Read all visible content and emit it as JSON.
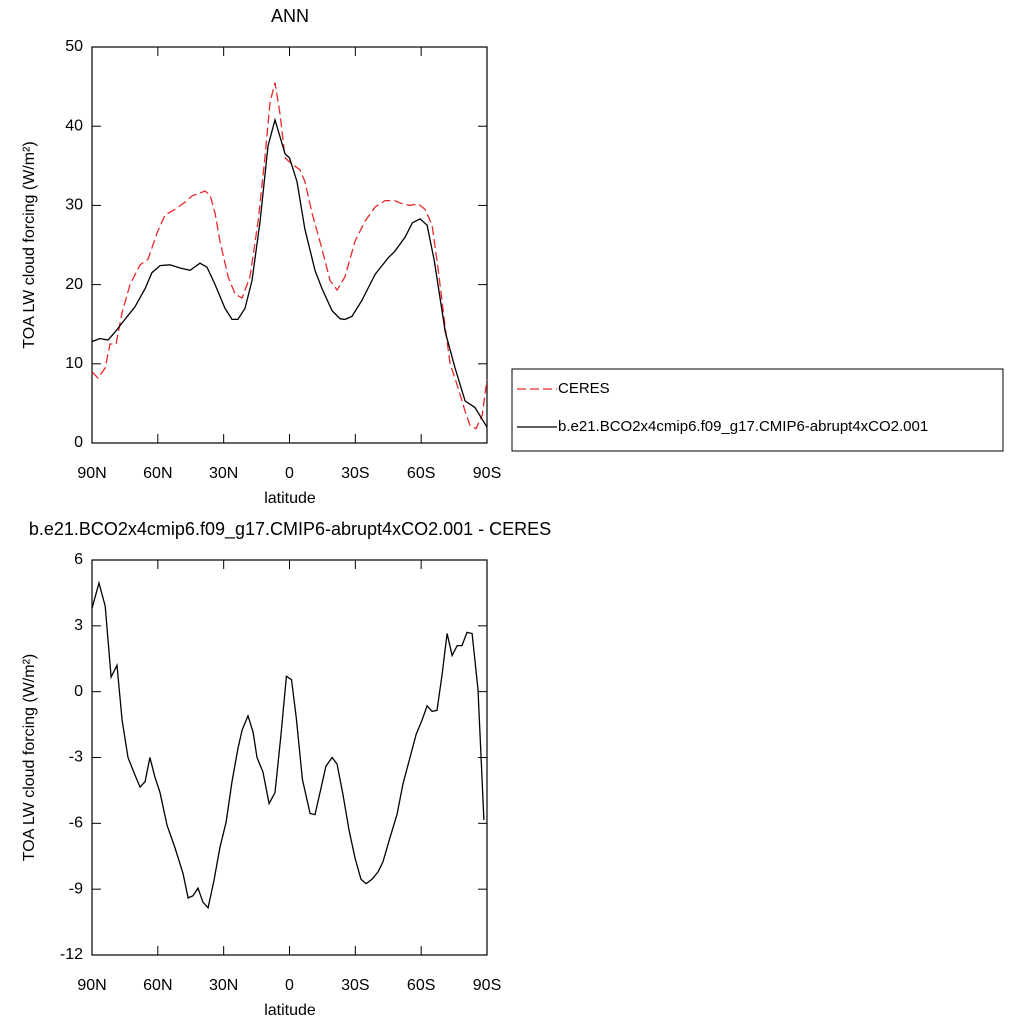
{
  "chart_data": [
    {
      "type": "line",
      "title": "ANN",
      "xlabel": "latitude",
      "ylabel": "TOA LW cloud forcing (W/m²)",
      "xlim": [
        90,
        -90
      ],
      "ylim": [
        0,
        50
      ],
      "xticks": [
        {
          "value": 90,
          "label": "90N"
        },
        {
          "value": 60,
          "label": "60N"
        },
        {
          "value": 30,
          "label": "30N"
        },
        {
          "value": 0,
          "label": "0"
        },
        {
          "value": -30,
          "label": "30S"
        },
        {
          "value": -60,
          "label": "60S"
        },
        {
          "value": -90,
          "label": "90S"
        }
      ],
      "yticks": [
        0,
        10,
        20,
        30,
        40,
        50
      ],
      "legend": "right",
      "series": [
        {
          "name": "CERES",
          "color": "#e8292b",
          "dash": true,
          "x": [
            90,
            87.3,
            84,
            81.8,
            79,
            76.3,
            72.7,
            68.1,
            64.5,
            60.4,
            56.7,
            52.2,
            47.6,
            44.4,
            38.5,
            36.2,
            33.9,
            31.7,
            28,
            24.8,
            21.6,
            18,
            14.3,
            11.2,
            8.9,
            6.6,
            4.3,
            2,
            -1.2,
            -4.8,
            -7,
            -10.3,
            -14.8,
            -18.5,
            -21.7,
            -25.3,
            -29.9,
            -34.4,
            -39,
            -43.5,
            -48,
            -51.3,
            -54.9,
            -58.6,
            -61.8,
            -65,
            -67.7,
            -71,
            -73.2,
            -76.8,
            -80,
            -82.3,
            -85,
            -87.8,
            -90
          ],
          "values": [
            9,
            8.2,
            9.5,
            12.5,
            12.5,
            16.5,
            20,
            22.5,
            23.2,
            26.5,
            28.8,
            29.5,
            30.4,
            31.2,
            31.8,
            31.3,
            29,
            25.5,
            21,
            18.8,
            18.3,
            21,
            28,
            36,
            43,
            45.5,
            41.5,
            36,
            35.2,
            34.5,
            33,
            29,
            24.5,
            20.5,
            19.3,
            21,
            25.5,
            28,
            29.8,
            30.6,
            30.6,
            30.2,
            30,
            30.2,
            29.5,
            27.5,
            22,
            14.5,
            10,
            7,
            4,
            2.2,
            1.8,
            3.5,
            8
          ]
        },
        {
          "name": "b.e21.BCO2x4cmip6.f09_g17.CMIP6-abrupt4xCO2.001",
          "color": "#000000",
          "dash": false,
          "x": [
            90,
            86.4,
            82.7,
            79.5,
            75,
            70.4,
            65.8,
            62.7,
            59,
            54.5,
            49.9,
            45.3,
            40.8,
            37.6,
            33.9,
            29.4,
            26.2,
            23.5,
            20.3,
            17.1,
            13.4,
            9.8,
            6.6,
            2,
            0,
            -3.4,
            -7,
            -11.6,
            -14.8,
            -19.4,
            -23,
            -25.3,
            -28.5,
            -33,
            -39,
            -45,
            -48,
            -52.7,
            -56,
            -59.5,
            -62.7,
            -66,
            -71,
            -75.4,
            -80,
            -84.5,
            -90
          ],
          "values": [
            12.8,
            13.2,
            13,
            14,
            15.6,
            17.2,
            19.5,
            21.5,
            22.4,
            22.5,
            22.1,
            21.8,
            22.7,
            22.2,
            20,
            17,
            15.6,
            15.6,
            17,
            20.5,
            28,
            37.5,
            40.8,
            36.5,
            36,
            33,
            27,
            21.8,
            19.5,
            16.7,
            15.7,
            15.6,
            16,
            18,
            21.3,
            23.4,
            24.2,
            26,
            27.8,
            28.3,
            27.5,
            23,
            14,
            9.5,
            5.3,
            4.5,
            2
          ]
        }
      ]
    },
    {
      "type": "line",
      "title": "b.e21.BCO2x4cmip6.f09_g17.CMIP6-abrupt4xCO2.001 - CERES",
      "xlabel": "latitude",
      "ylabel": "TOA LW cloud forcing (W/m²)",
      "xlim": [
        90,
        -90
      ],
      "ylim": [
        -12,
        6
      ],
      "xticks": [
        {
          "value": 90,
          "label": "90N"
        },
        {
          "value": 60,
          "label": "60N"
        },
        {
          "value": 30,
          "label": "30N"
        },
        {
          "value": 0,
          "label": "0"
        },
        {
          "value": -30,
          "label": "30S"
        },
        {
          "value": -60,
          "label": "60S"
        },
        {
          "value": -90,
          "label": "90S"
        }
      ],
      "yticks": [
        -12,
        -9,
        -6,
        -3,
        0,
        3,
        6
      ],
      "series": [
        {
          "color": "#000000",
          "dash": false,
          "x": [
            90,
            86.8,
            84,
            81.3,
            78.6,
            76.3,
            73.6,
            70.4,
            68.1,
            65.8,
            63.6,
            61.3,
            59,
            55.8,
            52.2,
            48.5,
            46.2,
            44,
            41.7,
            39.4,
            37.1,
            34.4,
            31.7,
            28.9,
            26.2,
            23.5,
            21.6,
            18.9,
            16.6,
            14.8,
            12.1,
            9.3,
            6.6,
            3.9,
            1.4,
            -0.9,
            -3.1,
            -5.9,
            -9.4,
            -11.6,
            -13.9,
            -16.6,
            -19.4,
            -21.7,
            -24.4,
            -27.1,
            -29.9,
            -32.6,
            -34.9,
            -37.6,
            -40.4,
            -42.6,
            -45.8,
            -49,
            -51.7,
            -54.9,
            -57.7,
            -60.4,
            -62.7,
            -65,
            -67.2,
            -69.5,
            -71.8,
            -74.1,
            -76.4,
            -78.6,
            -80.9,
            -83.2,
            -85.9,
            -88.6
          ],
          "values": [
            3.8,
            4.95,
            3.9,
            0.67,
            1.2,
            -1.3,
            -3,
            -3.8,
            -4.35,
            -4.1,
            -3,
            -3.9,
            -4.6,
            -6.1,
            -7.1,
            -8.3,
            -9.4,
            -9.3,
            -8.95,
            -9.6,
            -9.85,
            -8.6,
            -7.1,
            -5.95,
            -4.1,
            -2.6,
            -1.75,
            -1.1,
            -1.85,
            -3,
            -3.65,
            -5.1,
            -4.6,
            -2,
            0.7,
            0.55,
            -1.2,
            -4,
            -5.55,
            -5.6,
            -4.6,
            -3.4,
            -3,
            -3.3,
            -4.7,
            -6.3,
            -7.6,
            -8.55,
            -8.75,
            -8.55,
            -8.2,
            -7.75,
            -6.65,
            -5.6,
            -4.2,
            -3,
            -1.95,
            -1.3,
            -0.65,
            -0.9,
            -0.85,
            0.75,
            2.65,
            1.65,
            2.1,
            2.1,
            2.7,
            2.65,
            0.1,
            -5.85
          ]
        }
      ]
    }
  ]
}
